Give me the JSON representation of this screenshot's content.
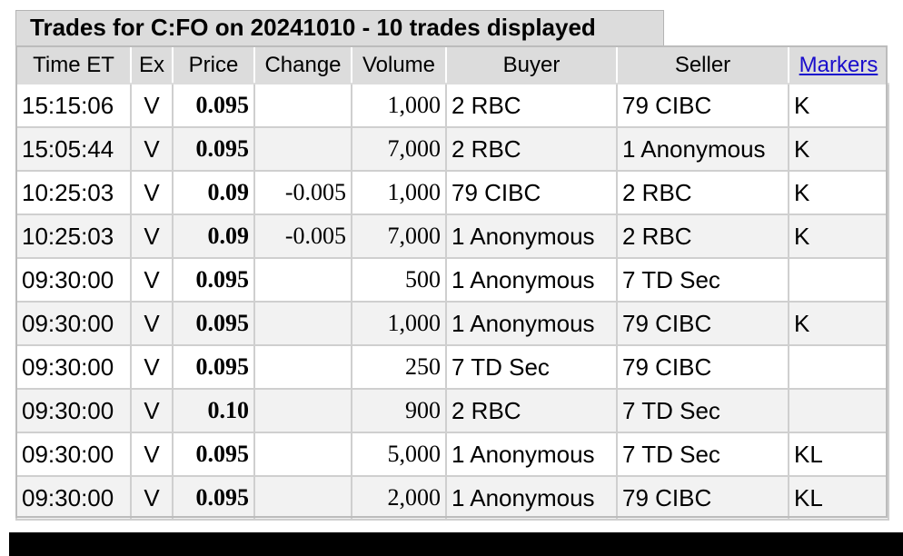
{
  "title": "Trades for C:FO on 20241010 - 10 trades displayed",
  "headers": {
    "time": "Time ET",
    "ex": "Ex",
    "price": "Price",
    "change": "Change",
    "volume": "Volume",
    "buyer": "Buyer",
    "seller": "Seller",
    "markers": "Markers"
  },
  "trades": [
    {
      "time": "15:15:06",
      "ex": "V",
      "price": "0.095",
      "change": "",
      "volume": "1,000",
      "buyer": "2 RBC",
      "seller": "79 CIBC",
      "markers": "K"
    },
    {
      "time": "15:05:44",
      "ex": "V",
      "price": "0.095",
      "change": "",
      "volume": "7,000",
      "buyer": "2 RBC",
      "seller": "1 Anonymous",
      "markers": "K"
    },
    {
      "time": "10:25:03",
      "ex": "V",
      "price": "0.09",
      "change": "-0.005",
      "volume": "1,000",
      "buyer": "79 CIBC",
      "seller": "2 RBC",
      "markers": "K"
    },
    {
      "time": "10:25:03",
      "ex": "V",
      "price": "0.09",
      "change": "-0.005",
      "volume": "7,000",
      "buyer": "1 Anonymous",
      "seller": "2 RBC",
      "markers": "K"
    },
    {
      "time": "09:30:00",
      "ex": "V",
      "price": "0.095",
      "change": "",
      "volume": "500",
      "buyer": "1 Anonymous",
      "seller": "7 TD Sec",
      "markers": ""
    },
    {
      "time": "09:30:00",
      "ex": "V",
      "price": "0.095",
      "change": "",
      "volume": "1,000",
      "buyer": "1 Anonymous",
      "seller": "79 CIBC",
      "markers": "K"
    },
    {
      "time": "09:30:00",
      "ex": "V",
      "price": "0.095",
      "change": "",
      "volume": "250",
      "buyer": "7 TD Sec",
      "seller": "79 CIBC",
      "markers": ""
    },
    {
      "time": "09:30:00",
      "ex": "V",
      "price": "0.10",
      "change": "",
      "volume": "900",
      "buyer": "2 RBC",
      "seller": "7 TD Sec",
      "markers": ""
    },
    {
      "time": "09:30:00",
      "ex": "V",
      "price": "0.095",
      "change": "",
      "volume": "5,000",
      "buyer": "1 Anonymous",
      "seller": "7 TD Sec",
      "markers": "KL"
    },
    {
      "time": "09:30:00",
      "ex": "V",
      "price": "0.095",
      "change": "",
      "volume": "2,000",
      "buyer": "1 Anonymous",
      "seller": "79 CIBC",
      "markers": "KL"
    }
  ],
  "colors": {
    "header_bg": "#dcdcdc",
    "alt_row_bg": "#f2f2f2",
    "change_negative": "#8b0000",
    "link": "#1a0dcc"
  }
}
